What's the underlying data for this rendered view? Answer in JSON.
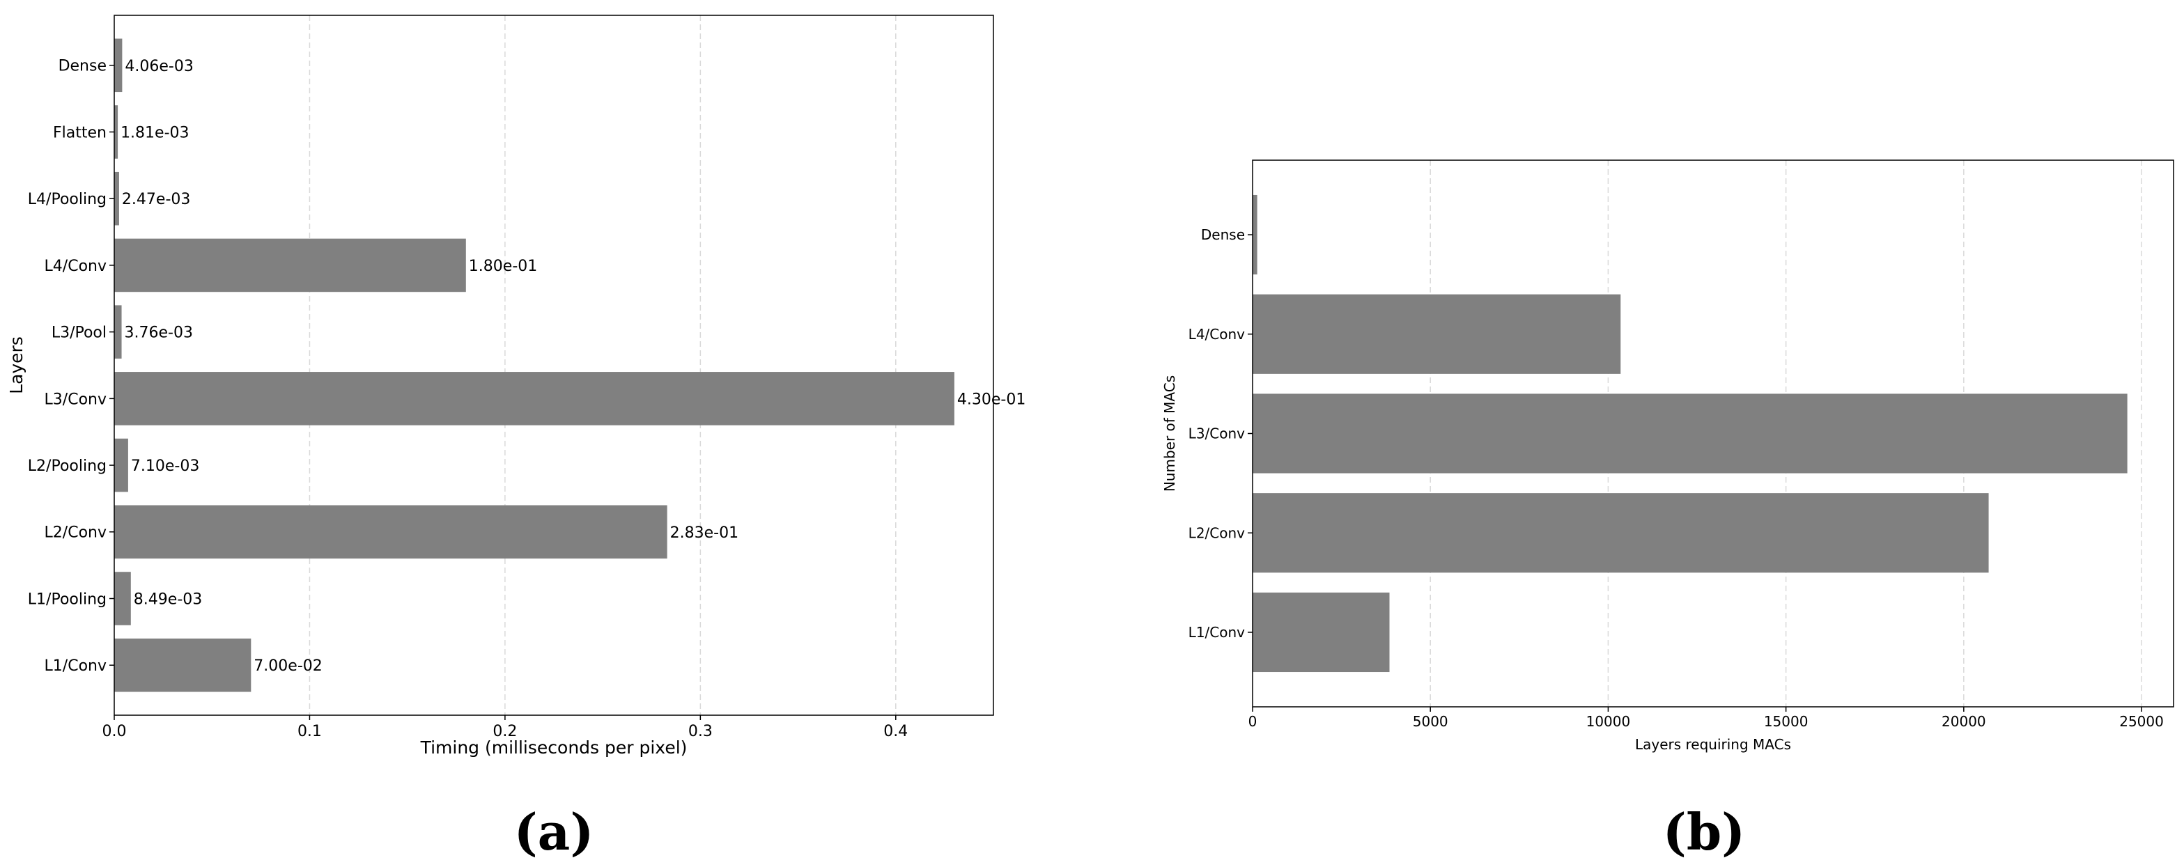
{
  "panels": [
    {
      "label": "(a)"
    },
    {
      "label": "(b)"
    }
  ],
  "chart_data": [
    {
      "type": "bar",
      "orientation": "horizontal",
      "categories": [
        "L1/Conv",
        "L1/Pooling",
        "L2/Conv",
        "L2/Pooling",
        "L3/Conv",
        "L3/Pool",
        "L4/Conv",
        "L4/Pooling",
        "Flatten",
        "Dense"
      ],
      "values": [
        0.07,
        0.00849,
        0.283,
        0.0071,
        0.43,
        0.00376,
        0.18,
        0.00247,
        0.00181,
        0.00406
      ],
      "data_labels": [
        "7.00e-02",
        "8.49e-03",
        "2.83e-01",
        "7.10e-03",
        "4.30e-01",
        "3.76e-03",
        "1.80e-01",
        "2.47e-03",
        "1.81e-03",
        "4.06e-03"
      ],
      "xlabel": "Timing (milliseconds per pixel)",
      "ylabel": "Layers",
      "xlim": [
        0,
        0.45
      ],
      "xticks": [
        0,
        0.1,
        0.2,
        0.3,
        0.4
      ],
      "xtick_labels": [
        "0.0",
        "0.1",
        "0.2",
        "0.3",
        "0.4"
      ],
      "grid": "x",
      "bar_color": "#808080"
    },
    {
      "type": "bar",
      "orientation": "horizontal",
      "categories": [
        "L1/Conv",
        "L2/Conv",
        "L3/Conv",
        "L4/Conv",
        "Dense"
      ],
      "values": [
        3850,
        20700,
        24600,
        10350,
        130
      ],
      "xlabel": "Layers requiring MACs",
      "ylabel": "Number of MACs",
      "xlim": [
        0,
        25900
      ],
      "xticks": [
        0,
        5000,
        10000,
        15000,
        20000,
        25000
      ],
      "xtick_labels": [
        "0",
        "5000",
        "10000",
        "15000",
        "20000",
        "25000"
      ],
      "grid": "x",
      "bar_color": "#808080"
    }
  ]
}
